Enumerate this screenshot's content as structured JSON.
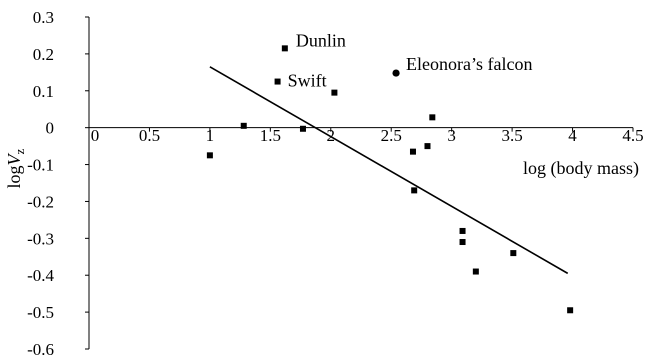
{
  "chart_data": {
    "type": "scatter",
    "title": "",
    "xlabel": "log (body mass)",
    "ylabel_main": "log",
    "ylabel_var": "V",
    "ylabel_sub": "z",
    "xlim": [
      0,
      4.5
    ],
    "ylim": [
      -0.6,
      0.3
    ],
    "x_ticks": [
      0,
      0.5,
      1,
      1.5,
      2,
      2.5,
      3,
      3.5,
      4,
      4.5
    ],
    "x_tick_labels": [
      "0",
      "0.5",
      "1",
      "1.5",
      "2",
      "2.5",
      "3",
      "3.5",
      "4",
      "4.5"
    ],
    "y_ticks": [
      0.3,
      0.2,
      0.1,
      0,
      -0.1,
      -0.2,
      -0.3,
      -0.4,
      -0.5,
      -0.6
    ],
    "y_tick_labels": [
      "0.3",
      "0.2",
      "0.1",
      "0",
      "-0.1",
      "-0.2",
      "-0.3",
      "-0.4",
      "-0.5",
      "-0.6"
    ],
    "grid": false,
    "series": [
      {
        "marker": "square",
        "color": "#000000",
        "points": [
          {
            "x": 1.0,
            "y": -0.075
          },
          {
            "x": 1.28,
            "y": 0.005
          },
          {
            "x": 1.56,
            "y": 0.125
          },
          {
            "x": 1.62,
            "y": 0.215
          },
          {
            "x": 1.77,
            "y": -0.003
          },
          {
            "x": 2.03,
            "y": 0.095
          },
          {
            "x": 2.68,
            "y": -0.065
          },
          {
            "x": 2.69,
            "y": -0.17
          },
          {
            "x": 2.8,
            "y": -0.05
          },
          {
            "x": 2.84,
            "y": 0.028
          },
          {
            "x": 3.09,
            "y": -0.28
          },
          {
            "x": 3.09,
            "y": -0.31
          },
          {
            "x": 3.2,
            "y": -0.39
          },
          {
            "x": 3.51,
            "y": -0.34
          },
          {
            "x": 3.98,
            "y": -0.495
          }
        ]
      },
      {
        "marker": "circle",
        "color": "#000000",
        "points": [
          {
            "x": 2.54,
            "y": 0.148
          }
        ]
      }
    ],
    "trendline": {
      "x": [
        1.0,
        3.96
      ],
      "y": [
        0.165,
        -0.395
      ],
      "color": "#000000"
    },
    "annotations": [
      {
        "text": "Dunlin",
        "x": 1.62,
        "y": 0.215
      },
      {
        "text": "Swift",
        "x": 1.56,
        "y": 0.125
      },
      {
        "text": "Eleonora’s falcon",
        "x": 2.54,
        "y": 0.148
      }
    ]
  }
}
